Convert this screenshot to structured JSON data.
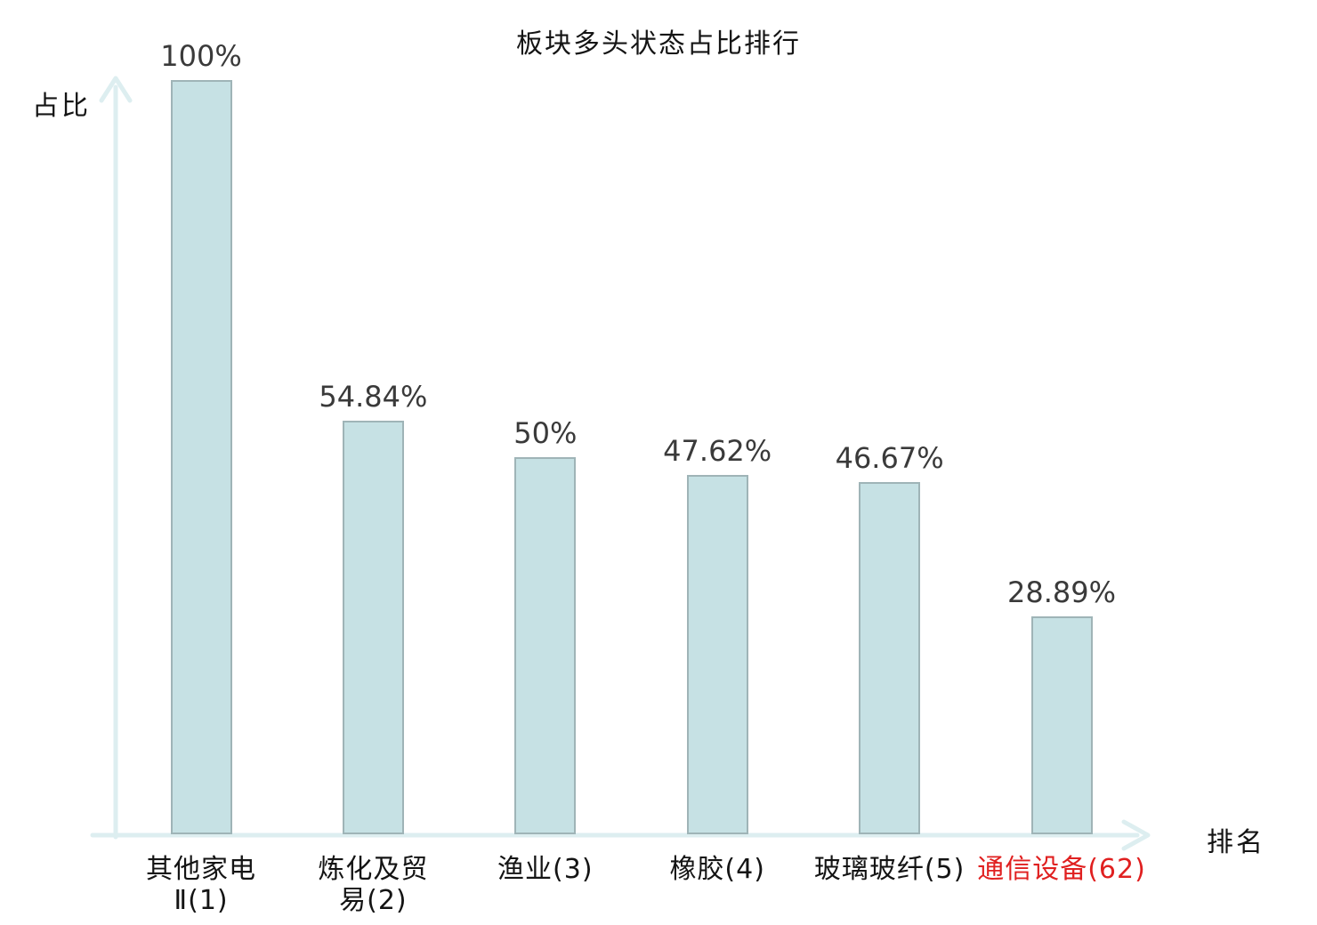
{
  "title": "板块多头状态占比排行",
  "axes": {
    "y_label": "占比",
    "x_label": "排名"
  },
  "colors": {
    "bar_fill": "#c6e1e4",
    "bar_border": "#9fb4b7",
    "axis": "#ddeef0",
    "value_label": "#3a3a3a",
    "category_label": "#141414",
    "title": "#141414",
    "highlight": "#e02020"
  },
  "chart_data": {
    "type": "bar",
    "title": "板块多头状态占比排行",
    "xlabel": "排名",
    "ylabel": "占比",
    "ylim": [
      0,
      100
    ],
    "grid": false,
    "legend": false,
    "categories": [
      "其他家电Ⅱ(1)",
      "炼化及贸易(2)",
      "渔业(3)",
      "橡胶(4)",
      "玻璃玻纤(5)",
      "通信设备(62)"
    ],
    "category_display": [
      "其他家电\nⅡ(1)",
      "炼化及贸\n易(2)",
      "渔业(3)",
      "橡胶(4)",
      "玻璃玻纤(5)",
      "通信设备(62)"
    ],
    "values": [
      100,
      54.84,
      50,
      47.62,
      46.67,
      28.89
    ],
    "value_labels": [
      "100%",
      "54.84%",
      "50%",
      "47.62%",
      "46.67%",
      "28.89%"
    ],
    "ranks": [
      1,
      2,
      3,
      4,
      5,
      62
    ],
    "highlighted_category_index": 5
  }
}
